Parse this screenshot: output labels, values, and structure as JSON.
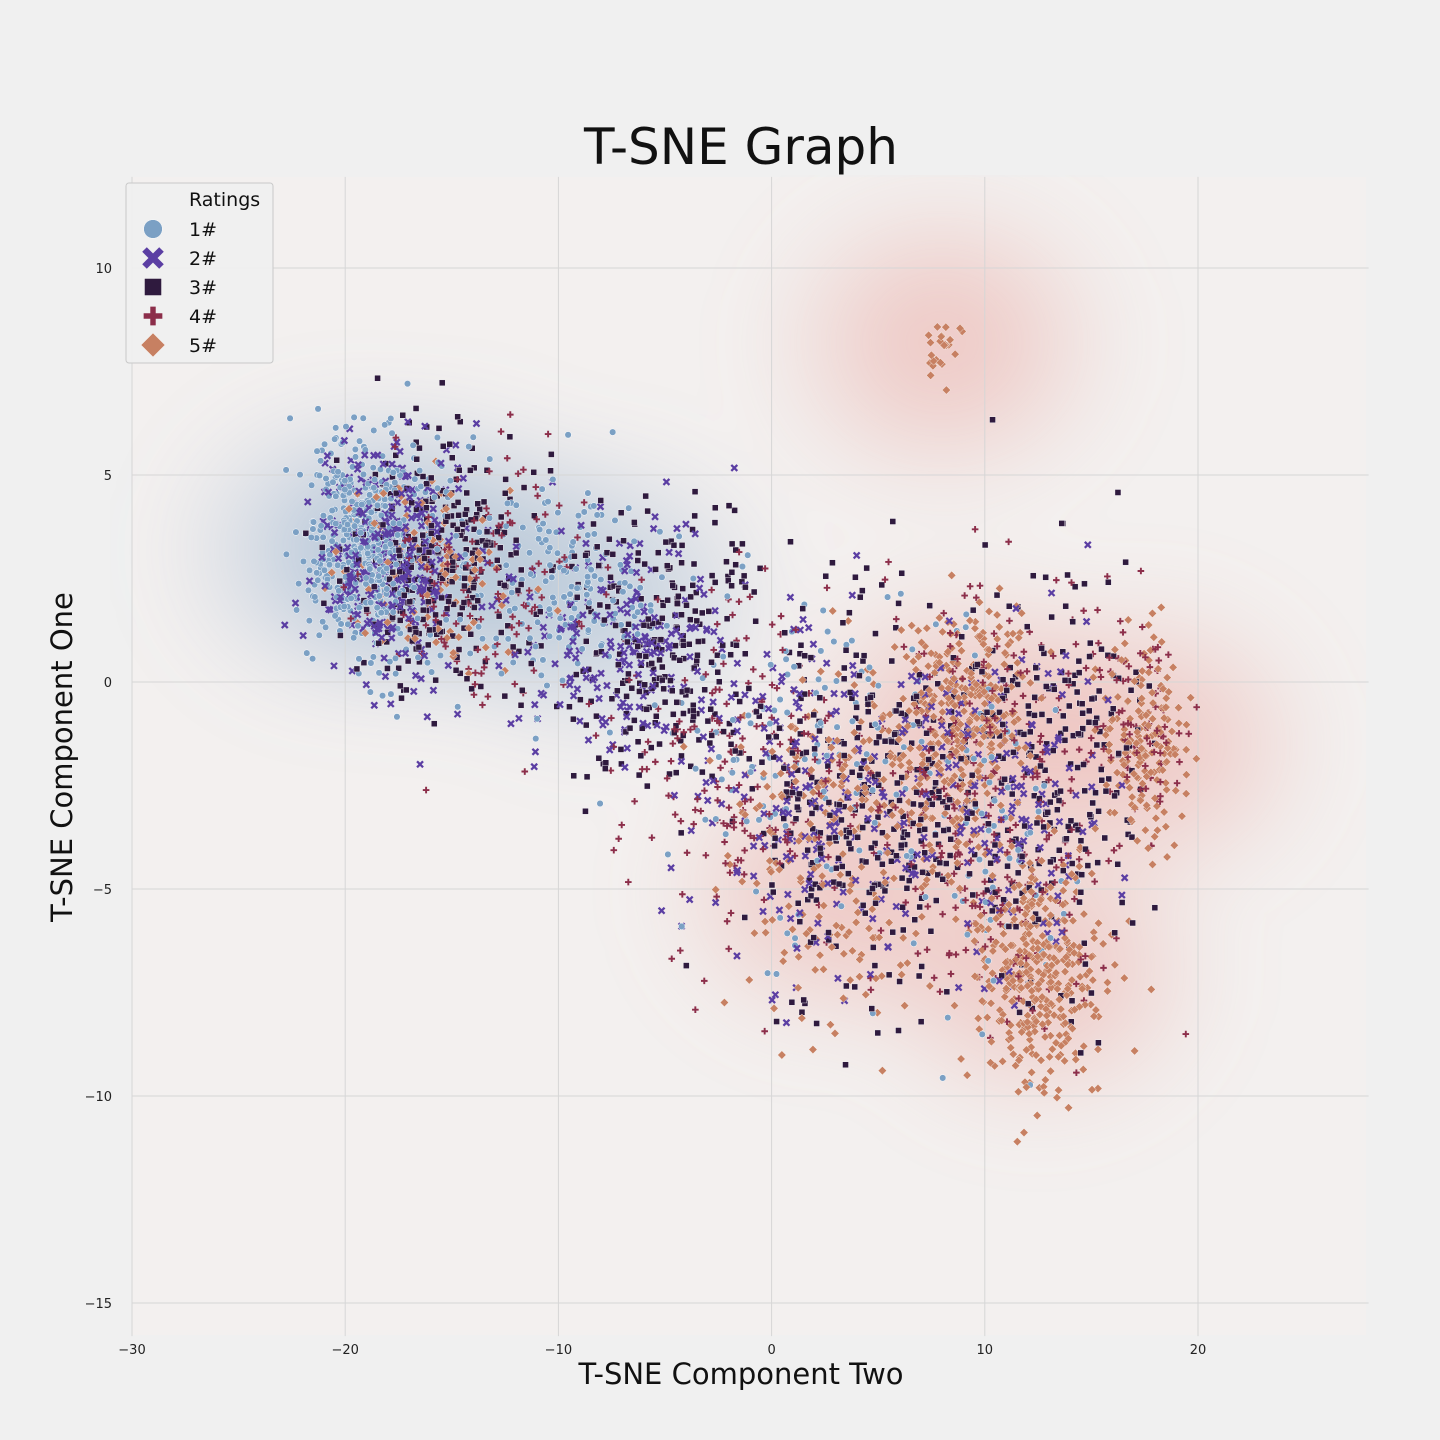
{
  "chart_data": {
    "type": "scatter",
    "title": "T-SNE Graph",
    "xlabel": "T-SNE Component Two",
    "ylabel": "T-SNE Component One",
    "xlim": [
      -30,
      28
    ],
    "ylim": [
      -15.8,
      12.2
    ],
    "xticks": [
      -30,
      -20,
      -10,
      0,
      10,
      20
    ],
    "yticks": [
      -15,
      -10,
      -5,
      0,
      5,
      10
    ],
    "xtick_labels": [
      "−30",
      "−20",
      "−10",
      "0",
      "10",
      "20"
    ],
    "ytick_labels": [
      "−15",
      "−10",
      "−5",
      "0",
      "5",
      "10"
    ],
    "grid": true,
    "legend": {
      "title": "Ratings",
      "placement": "upper-left"
    },
    "background": "#f0f0f0",
    "series": [
      {
        "name": "1#",
        "marker": "circle",
        "color": "#7ba0c4",
        "clusters": [
          {
            "center": [
              -19,
              3.2
            ],
            "spread": [
              2.5,
              2.2
            ],
            "count": 480
          },
          {
            "center": [
              -10,
              2.5
            ],
            "spread": [
              4.0,
              2.0
            ],
            "count": 190
          },
          {
            "center": [
              2,
              -1.5
            ],
            "spread": [
              6.0,
              3.5
            ],
            "count": 130
          },
          {
            "center": [
              10,
              -4
            ],
            "spread": [
              4.0,
              4.0
            ],
            "count": 60
          }
        ]
      },
      {
        "name": "2#",
        "marker": "x",
        "color": "#5b3ea3",
        "clusters": [
          {
            "center": [
              -18,
              3.0
            ],
            "spread": [
              3.0,
              2.3
            ],
            "count": 320
          },
          {
            "center": [
              -7,
              1.0
            ],
            "spread": [
              4.5,
              2.5
            ],
            "count": 190
          },
          {
            "center": [
              2,
              -2.5
            ],
            "spread": [
              5.5,
              3.5
            ],
            "count": 200
          },
          {
            "center": [
              11,
              -3
            ],
            "spread": [
              4.5,
              4.0
            ],
            "count": 150
          }
        ]
      },
      {
        "name": "3#",
        "marker": "square",
        "color": "#2f1a3e",
        "clusters": [
          {
            "center": [
              -16,
              3.0
            ],
            "spread": [
              3.5,
              2.4
            ],
            "count": 330
          },
          {
            "center": [
              -5,
              1.0
            ],
            "spread": [
              4.5,
              2.8
            ],
            "count": 280
          },
          {
            "center": [
              5,
              -3.0
            ],
            "spread": [
              5.0,
              3.8
            ],
            "count": 330
          },
          {
            "center": [
              13,
              -2
            ],
            "spread": [
              4.0,
              4.2
            ],
            "count": 240
          }
        ]
      },
      {
        "name": "4#",
        "marker": "plus",
        "color": "#8c2e4a",
        "clusters": [
          {
            "center": [
              -14,
              2.5
            ],
            "spread": [
              4.0,
              2.5
            ],
            "count": 130
          },
          {
            "center": [
              -1,
              -2.0
            ],
            "spread": [
              5.5,
              3.5
            ],
            "count": 200
          },
          {
            "center": [
              10,
              -3.0
            ],
            "spread": [
              4.5,
              4.5
            ],
            "count": 260
          },
          {
            "center": [
              17,
              -1.0
            ],
            "spread": [
              2.0,
              2.5
            ],
            "count": 90
          }
        ]
      },
      {
        "name": "5#",
        "marker": "diamond",
        "color": "#c78062",
        "clusters": [
          {
            "center": [
              -16,
              2.5
            ],
            "spread": [
              3.5,
              2.5
            ],
            "count": 110
          },
          {
            "center": [
              3,
              -4.0
            ],
            "spread": [
              4.5,
              3.8
            ],
            "count": 230
          },
          {
            "center": [
              9,
              -1.0
            ],
            "spread": [
              2.5,
              2.5
            ],
            "count": 330
          },
          {
            "center": [
              12.5,
              -7.0
            ],
            "spread": [
              2.5,
              2.5
            ],
            "count": 360
          },
          {
            "center": [
              17.5,
              -1.5
            ],
            "spread": [
              1.5,
              2.0
            ],
            "count": 170
          },
          {
            "center": [
              8,
              8.0
            ],
            "spread": [
              0.8,
              0.6
            ],
            "count": 25
          }
        ]
      }
    ],
    "density": {
      "cool": {
        "color": "#7ba0c4",
        "centers": [
          [
            -20,
            3.2
          ],
          [
            -15,
            3.0
          ],
          [
            -8,
            2.0
          ]
        ]
      },
      "warm": {
        "color": "#e8908a",
        "centers": [
          [
            9,
            -1.0
          ],
          [
            12.5,
            -7.0
          ],
          [
            17.5,
            -1.5
          ],
          [
            8,
            8.2
          ],
          [
            3,
            -5.0
          ]
        ]
      }
    }
  }
}
